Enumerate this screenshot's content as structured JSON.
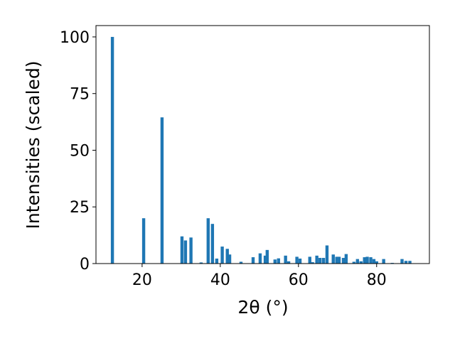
{
  "chart_data": {
    "type": "bar",
    "x_label": "2θ (°)",
    "y_label": "Intensities (scaled)",
    "x": [
      12.4,
      20.4,
      25.1,
      30.2,
      31.1,
      32.5,
      35.1,
      36.9,
      38.0,
      39.1,
      40.5,
      41.8,
      42.4,
      45.3,
      48.4,
      50.2,
      51.5,
      52.0,
      54.0,
      54.9,
      56.7,
      57.5,
      59.6,
      60.4,
      62.9,
      63.6,
      64.7,
      65.5,
      66.4,
      67.3,
      68.9,
      69.8,
      70.4,
      71.5,
      72.2,
      74.2,
      75.1,
      76.0,
      76.9,
      77.6,
      78.5,
      79.3,
      80.0,
      81.8,
      84.0,
      86.5,
      87.5,
      88.5
    ],
    "values": [
      100,
      20,
      64.5,
      12,
      10.2,
      11.5,
      0.5,
      20,
      17.5,
      2.2,
      7.5,
      6.5,
      4,
      0.8,
      2.8,
      4.5,
      3.5,
      6,
      1.8,
      2.3,
      3.5,
      1,
      3,
      2.2,
      3,
      0.6,
      3.5,
      2.5,
      2.5,
      8,
      4,
      3,
      3,
      2.5,
      4.2,
      0.8,
      2,
      1,
      2.8,
      3,
      2.8,
      2,
      1,
      2,
      0.3,
      2,
      1.2,
      1.2
    ],
    "color": "#1f77b4",
    "xlim": [
      8.2,
      93.5
    ],
    "xticks": [
      20,
      40,
      60,
      80
    ],
    "ylim": [
      0,
      105
    ],
    "yticks": [
      0,
      25,
      50,
      75,
      100
    ],
    "grid": false
  }
}
